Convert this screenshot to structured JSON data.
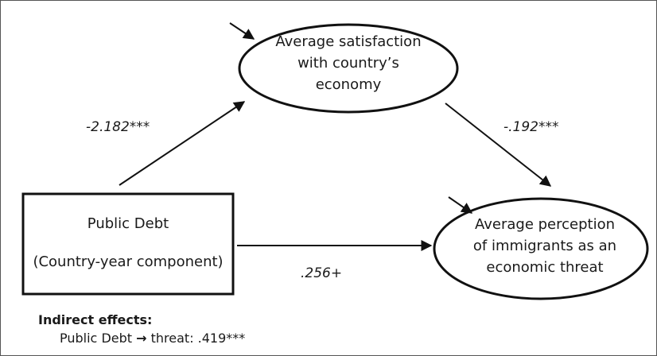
{
  "nodes": {
    "satisfaction": {
      "line1": "Average satisfaction",
      "line2": "with country’s",
      "line3": "economy"
    },
    "debt": {
      "line1": "Public Debt",
      "line2": "(Country-year component)"
    },
    "threat": {
      "line1": "Average perception",
      "line2": "of immigrants as an",
      "line3": "economic threat"
    }
  },
  "paths": {
    "debt_to_satisfaction": "-2.182***",
    "satisfaction_to_threat": "-.192***",
    "debt_to_threat": ".256+"
  },
  "indirect": {
    "title": "Indirect effects:",
    "from": "Public Debt",
    "arrow": "→",
    "label": "threat: .419***"
  }
}
